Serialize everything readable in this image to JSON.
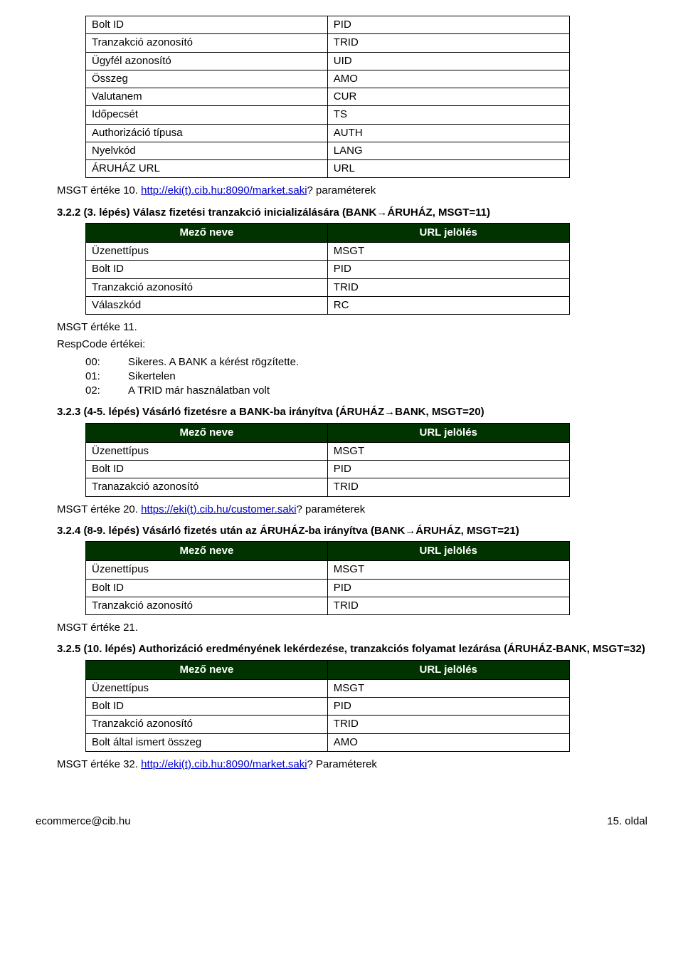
{
  "table1": {
    "rows": [
      [
        "Bolt ID",
        "PID"
      ],
      [
        "Tranzakció azonosító",
        "TRID"
      ],
      [
        "Ügyfél azonosító",
        "UID"
      ],
      [
        "Összeg",
        "AMO"
      ],
      [
        "Valutanem",
        "CUR"
      ],
      [
        "Időpecsét",
        "TS"
      ],
      [
        "Authorizáció típusa",
        "AUTH"
      ],
      [
        "Nyelvkód",
        "LANG"
      ],
      [
        "ÁRUHÁZ URL",
        "URL"
      ]
    ]
  },
  "p1a": "MSGT értéke 10. ",
  "p1_link": "http://eki(t).cib.hu:8090/market.saki",
  "p1b": "? paraméterek",
  "sec322": "3.2.2 (3. lépés) Válasz fizetési tranzakció inicializálására (BANK→ÁRUHÁZ, MSGT=11)",
  "table_header": {
    "c1": "Mező neve",
    "c2": "URL jelölés"
  },
  "table2": {
    "rows": [
      [
        "Üzenettípus",
        "MSGT"
      ],
      [
        "Bolt ID",
        "PID"
      ],
      [
        "Tranzakció azonosító",
        "TRID"
      ],
      [
        "Válaszkód",
        "RC"
      ]
    ]
  },
  "p2a": "MSGT értéke 11.",
  "p2b": "RespCode értékei:",
  "resp": [
    {
      "code": "00:",
      "text": "Sikeres. A BANK a kérést rögzítette."
    },
    {
      "code": "01:",
      "text": "Sikertelen"
    },
    {
      "code": "02:",
      "text": "A TRID már használatban volt"
    }
  ],
  "sec323": "3.2.3 (4-5. lépés) Vásárló fizetésre a BANK-ba irányítva (ÁRUHÁZ→BANK, MSGT=20)",
  "table3": {
    "rows": [
      [
        "Üzenettípus",
        "MSGT"
      ],
      [
        "Bolt ID",
        "PID"
      ],
      [
        "Tranazakció azonosító",
        "TRID"
      ]
    ]
  },
  "p3a": "MSGT értéke 20. ",
  "p3_link": "https://eki(t).cib.hu/customer.saki",
  "p3b": "? paraméterek",
  "sec324": "3.2.4 (8-9. lépés) Vásárló fizetés után az ÁRUHÁZ-ba irányítva (BANK→ÁRUHÁZ, MSGT=21)",
  "table4": {
    "rows": [
      [
        "Üzenettípus",
        "MSGT"
      ],
      [
        "Bolt ID",
        "PID"
      ],
      [
        "Tranzakció azonosító",
        "TRID"
      ]
    ]
  },
  "p4": "MSGT értéke 21.",
  "sec325": "3.2.5 (10. lépés) Authorizáció eredményének lekérdezése, tranzakciós folyamat lezárása (ÁRUHÁZ-BANK, MSGT=32)",
  "table5": {
    "rows": [
      [
        "Üzenettípus",
        "MSGT"
      ],
      [
        "Bolt ID",
        "PID"
      ],
      [
        "Tranzakció azonosító",
        "TRID"
      ],
      [
        "Bolt által ismert összeg",
        "AMO"
      ]
    ]
  },
  "p5a": "MSGT értéke 32. ",
  "p5_link": "http://eki(t).cib.hu:8090/market.saki",
  "p5b": "? Paraméterek",
  "footer": {
    "left": "ecommerce@cib.hu",
    "right": "15. oldal"
  }
}
